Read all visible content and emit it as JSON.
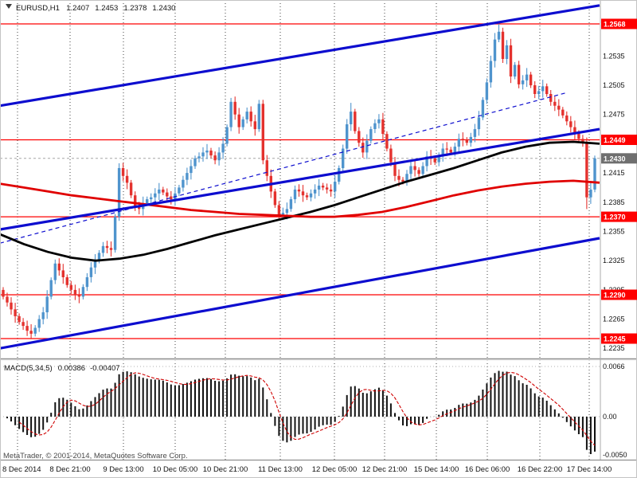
{
  "header": {
    "symbol": "EURUSD,H1",
    "open": "1.2407",
    "high": "1.2453",
    "low": "1.2378",
    "close": "1.2430"
  },
  "footer": {
    "copyright": "MetaTrader, © 2001-2014, MetaQuotes Software Corp."
  },
  "macd_panel": {
    "label": "MACD(5,34,5)",
    "value_main": "0.00386",
    "value_signal": "-0.00407",
    "axis_labels": [
      "0.0066",
      "0.00",
      "-0.0050"
    ]
  },
  "colors": {
    "bull": "#4f94cd",
    "bear": "#e4322e",
    "level": "#fe0000",
    "channel": "#0d0dcf",
    "ma_fast": "#000000",
    "ma_slow": "#e00000",
    "grid": "#404040",
    "current_box": "#6f6f6f",
    "macd_bar": "#111111",
    "macd_signal": "#cf0000"
  },
  "chart_data": {
    "type": "candlestick",
    "symbol": "EURUSD",
    "timeframe": "H1",
    "last_ohlc": {
      "open": 1.2407,
      "high": 1.2453,
      "low": 1.2378,
      "close": 1.243
    },
    "price_axis_range": [
      1.2235,
      1.2593
    ],
    "price_axis_labels": [
      "1.2535",
      "1.2505",
      "1.2475",
      "1.2415",
      "1.2385",
      "1.2355",
      "1.2325",
      "1.2295",
      "1.2265",
      "1.2235"
    ],
    "horizontal_levels": [
      1.2568,
      1.2449,
      1.237,
      1.229,
      1.2245
    ],
    "current_price": 1.243,
    "time_axis_labels": [
      "8 Dec 2014",
      "8 Dec 21:00",
      "9 Dec 13:00",
      "10 Dec 05:00",
      "10 Dec 21:00",
      "11 Dec 13:00",
      "12 Dec 05:00",
      "12 Dec 21:00",
      "15 Dec 14:00",
      "16 Dec 06:00",
      "16 Dec 22:00",
      "17 Dec 14:00"
    ],
    "candles": {
      "open_first": 1.2295,
      "closes": [
        1.2288,
        1.2282,
        1.2275,
        1.2268,
        1.2262,
        1.2258,
        1.2253,
        1.225,
        1.2256,
        1.2265,
        1.2272,
        1.2288,
        1.2305,
        1.2322,
        1.2315,
        1.2308,
        1.23,
        1.2295,
        1.229,
        1.2288,
        1.2298,
        1.2308,
        1.2318,
        1.2325,
        1.2333,
        1.234,
        1.2338,
        1.2336,
        1.237,
        1.242,
        1.2412,
        1.2405,
        1.2392,
        1.238,
        1.2378,
        1.2384,
        1.2388,
        1.239,
        1.2394,
        1.2398,
        1.2395,
        1.2391,
        1.2388,
        1.2394,
        1.24,
        1.2408,
        1.2415,
        1.2422,
        1.243,
        1.2432,
        1.2436,
        1.2438,
        1.2433,
        1.2428,
        1.2436,
        1.2445,
        1.2462,
        1.2488,
        1.2475,
        1.2462,
        1.247,
        1.2478,
        1.2468,
        1.246,
        1.2486,
        1.2428,
        1.2412,
        1.2396,
        1.2382,
        1.2372,
        1.2374,
        1.2378,
        1.2388,
        1.2398,
        1.2396,
        1.2392,
        1.239,
        1.2394,
        1.2398,
        1.2402,
        1.24,
        1.2398,
        1.2396,
        1.2406,
        1.242,
        1.244,
        1.2465,
        1.2478,
        1.2458,
        1.2446,
        1.2436,
        1.2448,
        1.246,
        1.2466,
        1.247,
        1.2455,
        1.244,
        1.2426,
        1.2412,
        1.2408,
        1.2406,
        1.2414,
        1.2422,
        1.2418,
        1.2414,
        1.2422,
        1.2432,
        1.243,
        1.2426,
        1.2432,
        1.244,
        1.2439,
        1.2436,
        1.2442,
        1.245,
        1.2449,
        1.2446,
        1.2452,
        1.246,
        1.2472,
        1.249,
        1.2508,
        1.253,
        1.2552,
        1.256,
        1.2532,
        1.2546,
        1.2514,
        1.2526,
        1.2506,
        1.251,
        1.2516,
        1.2505,
        1.2496,
        1.2499,
        1.2504,
        1.2496,
        1.2488,
        1.2484,
        1.248,
        1.2474,
        1.2468,
        1.2462,
        1.2456,
        1.245,
        1.2446,
        1.239,
        1.2398,
        1.243
      ],
      "wick_overrides": {
        "7": {
          "l": 1.2245
        },
        "29": {
          "h": 1.2425
        },
        "57": {
          "h": 1.2492
        },
        "64": {
          "h": 1.249
        },
        "87": {
          "h": 1.2487
        },
        "124": {
          "h": 1.2568
        },
        "146": {
          "l": 1.2378
        }
      }
    },
    "ma_slow_red": [
      [
        0,
        1.2404
      ],
      [
        30,
        1.24
      ],
      [
        60,
        1.2396
      ],
      [
        90,
        1.2392
      ],
      [
        120,
        1.2389
      ],
      [
        150,
        1.2386
      ],
      [
        180,
        1.2383
      ],
      [
        210,
        1.238
      ],
      [
        240,
        1.2377
      ],
      [
        270,
        1.2375
      ],
      [
        300,
        1.2373
      ],
      [
        330,
        1.2372
      ],
      [
        360,
        1.2371
      ],
      [
        390,
        1.237
      ],
      [
        420,
        1.237
      ],
      [
        450,
        1.2372
      ],
      [
        480,
        1.2375
      ],
      [
        510,
        1.238
      ],
      [
        540,
        1.2386
      ],
      [
        570,
        1.2392
      ],
      [
        600,
        1.2397
      ],
      [
        630,
        1.2401
      ],
      [
        660,
        1.2404
      ],
      [
        690,
        1.2406
      ],
      [
        720,
        1.2407
      ],
      [
        753,
        1.2405
      ]
    ],
    "ma_fast_black": [
      [
        0,
        1.2352
      ],
      [
        30,
        1.2342
      ],
      [
        60,
        1.2334
      ],
      [
        90,
        1.2328
      ],
      [
        120,
        1.2325
      ],
      [
        150,
        1.2327
      ],
      [
        180,
        1.2331
      ],
      [
        210,
        1.2337
      ],
      [
        240,
        1.2344
      ],
      [
        270,
        1.2351
      ],
      [
        300,
        1.2357
      ],
      [
        330,
        1.2363
      ],
      [
        360,
        1.2369
      ],
      [
        390,
        1.2375
      ],
      [
        420,
        1.2382
      ],
      [
        450,
        1.239
      ],
      [
        480,
        1.2398
      ],
      [
        510,
        1.2406
      ],
      [
        540,
        1.2413
      ],
      [
        570,
        1.242
      ],
      [
        600,
        1.2428
      ],
      [
        630,
        1.2436
      ],
      [
        660,
        1.2442
      ],
      [
        690,
        1.2446
      ],
      [
        720,
        1.2447
      ],
      [
        753,
        1.2445
      ]
    ],
    "channel_lines": {
      "upper": [
        0,
        1.2484,
        753,
        1.2587
      ],
      "middle": [
        0,
        1.2357,
        753,
        1.246
      ],
      "lower": [
        0,
        1.2235,
        753,
        1.2348
      ]
    },
    "trendline_dashed": [
      0,
      1.2343,
      710,
      1.2497
    ],
    "macd": {
      "fast": 5,
      "slow": 34,
      "signal": 5,
      "ylim": [
        -0.005,
        0.0066
      ]
    }
  }
}
